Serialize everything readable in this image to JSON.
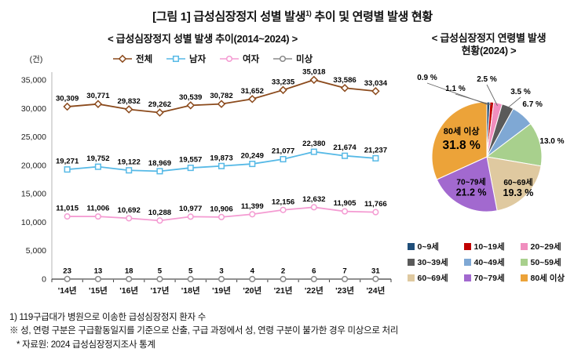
{
  "page": {
    "title_prefix": "[그림 1] 급성심장정지 성별 발생",
    "title_sup": "1)",
    "title_suffix": " 추이 및 연령별 발생 현황"
  },
  "line_chart": {
    "title": "< 급성심장정지 성별 발생 추이(2014~2024) >"
  },
  "pie_chart": {
    "title_line1": "< 급성심장정지 연령별 발생",
    "title_line2": "현황(2024) >"
  },
  "footnotes": {
    "line1": "1) 119구급대가 병원으로 이송한 급성심장정지 환자 수",
    "line2": "※ 성, 연령 구분은 구급활동일지를 기준으로 산출, 구급 과정에서 성, 연령 구분이 불가한 경우 미상으로 처리",
    "line3": "* 자료원: 2024 급성심장정지조사 통계"
  },
  "chart_data": [
    {
      "type": "line",
      "title": "< 급성심장정지 성별 발생 추이(2014~2024) >",
      "unit_label": "(건)",
      "categories": [
        "'14년",
        "'15년",
        "'16년",
        "'17년",
        "'18년",
        "'19년",
        "'20년",
        "'21년",
        "'22년",
        "'23년",
        "'24년"
      ],
      "series": [
        {
          "name": "전체",
          "color": "#8B4A1C",
          "marker": "diamond",
          "values": [
            30309,
            30771,
            29832,
            29262,
            30539,
            30782,
            31652,
            33235,
            35018,
            33586,
            33034
          ]
        },
        {
          "name": "남자",
          "color": "#56B9E6",
          "marker": "square",
          "values": [
            19271,
            19752,
            19122,
            18969,
            19557,
            19873,
            20249,
            21077,
            22380,
            21674,
            21237
          ]
        },
        {
          "name": "여자",
          "color": "#F49BD2",
          "marker": "circle",
          "values": [
            11015,
            11006,
            10692,
            10288,
            10977,
            10906,
            11399,
            12156,
            12632,
            11905,
            11766
          ]
        },
        {
          "name": "미상",
          "color": "#8A8A8A",
          "marker": "circle",
          "values": [
            23,
            13,
            18,
            5,
            5,
            3,
            4,
            2,
            6,
            7,
            31
          ]
        }
      ],
      "ylim": [
        0,
        35000
      ],
      "ytick_step": 5000,
      "legend_position": "top",
      "grid": false
    },
    {
      "type": "pie",
      "title": "< 급성심장정지 연령별 발생 현황(2024) >",
      "labels": [
        "0~9세",
        "10~19세",
        "20~29세",
        "30~39세",
        "40~49세",
        "50~59세",
        "60~69세",
        "70~79세",
        "80세 이상"
      ],
      "values": [
        0.9,
        1.1,
        2.5,
        3.5,
        6.7,
        13.0,
        19.3,
        21.2,
        31.8
      ],
      "colors": [
        "#1F4E79",
        "#C00000",
        "#F08EBE",
        "#5A5A5A",
        "#7FA8D4",
        "#A8D08D",
        "#DFC9A0",
        "#A269CF",
        "#ECA339"
      ],
      "unit": "%",
      "start_angle_deg": 0,
      "direction": "clockwise",
      "legend_position": "bottom"
    }
  ]
}
